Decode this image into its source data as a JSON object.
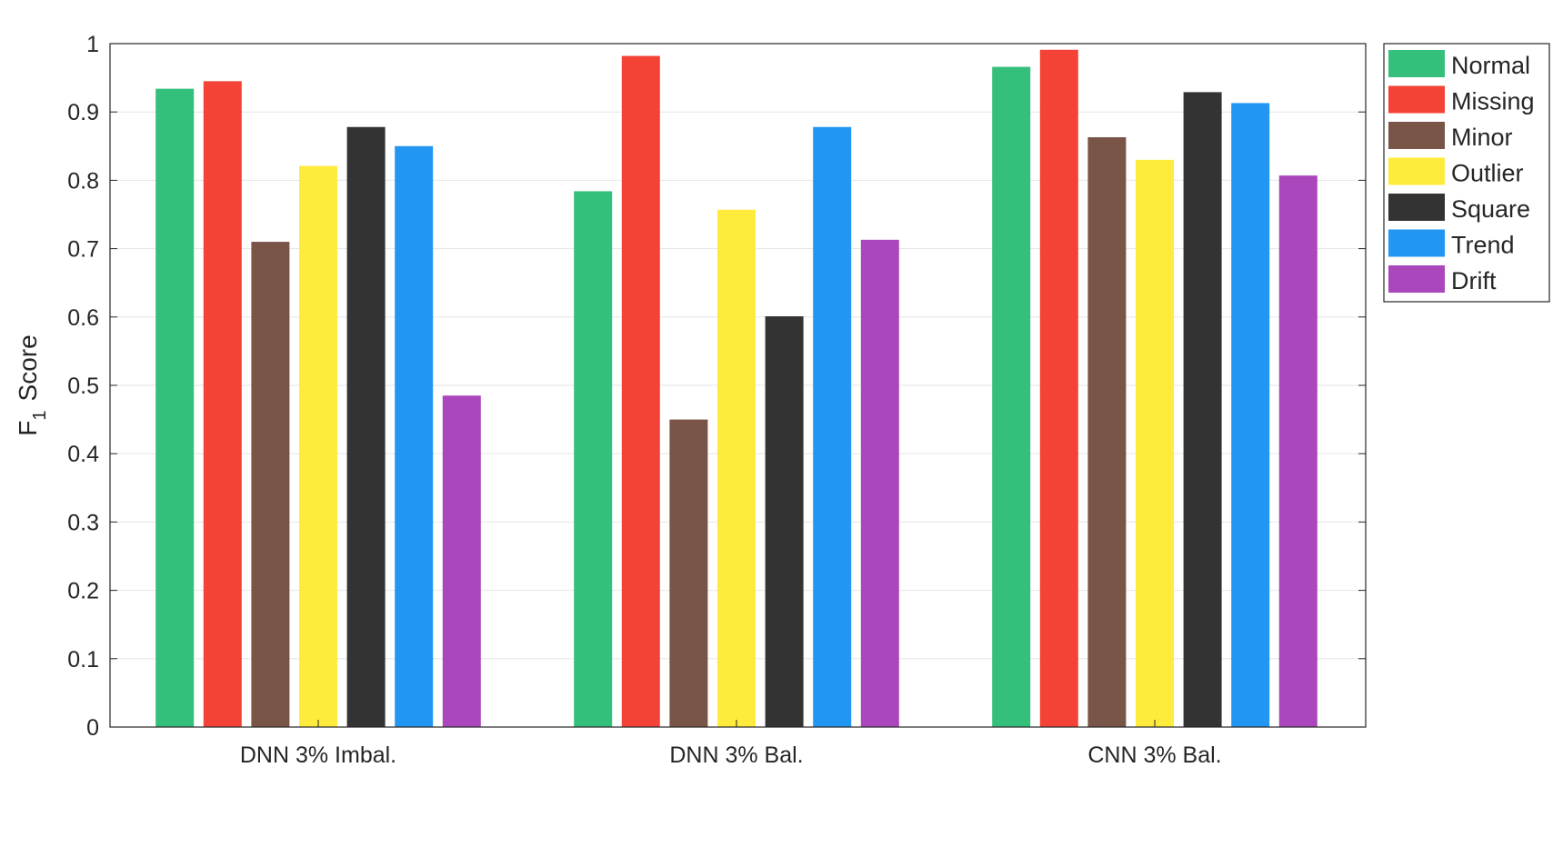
{
  "chart_data": {
    "type": "bar",
    "categories": [
      "DNN 3% Imbal.",
      "DNN 3% Bal.",
      "CNN 3% Bal."
    ],
    "series": [
      {
        "name": "Normal",
        "color": "#34bf7a",
        "values": [
          0.934,
          0.784,
          0.966
        ]
      },
      {
        "name": "Missing",
        "color": "#f44336",
        "values": [
          0.945,
          0.982,
          0.991
        ]
      },
      {
        "name": "Minor",
        "color": "#795548",
        "values": [
          0.71,
          0.45,
          0.863
        ]
      },
      {
        "name": "Outlier",
        "color": "#ffeb3b",
        "values": [
          0.821,
          0.757,
          0.83
        ]
      },
      {
        "name": "Square",
        "color": "#333333",
        "values": [
          0.878,
          0.601,
          0.929
        ]
      },
      {
        "name": "Trend",
        "color": "#2196f3",
        "values": [
          0.85,
          0.878,
          0.913
        ]
      },
      {
        "name": "Drift",
        "color": "#ab47bc",
        "values": [
          0.485,
          0.713,
          0.807
        ]
      }
    ],
    "title": "",
    "xlabel": "",
    "ylabel": {
      "main": "F",
      "subscript": "1",
      "rest": "Score"
    },
    "ylim": [
      0,
      1
    ],
    "yticks": [
      "0",
      "0.1",
      "0.2",
      "0.3",
      "0.4",
      "0.5",
      "0.6",
      "0.7",
      "0.8",
      "0.9",
      "1"
    ],
    "grid": true,
    "legend_position": "outside-top-right"
  }
}
